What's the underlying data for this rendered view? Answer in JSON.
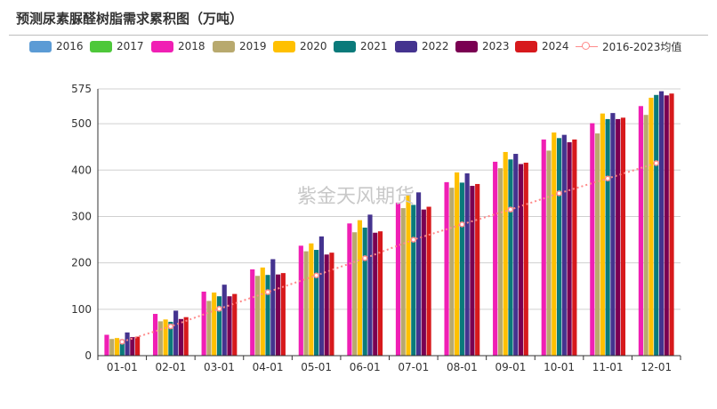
{
  "title": "预测尿素脲醛树脂需求累积图（万吨）",
  "watermark": "紫金天风期货",
  "legend": [
    {
      "label": "2016",
      "color": "#5b9bd5"
    },
    {
      "label": "2017",
      "color": "#4ec83a"
    },
    {
      "label": "2018",
      "color": "#f01fb4"
    },
    {
      "label": "2019",
      "color": "#b8a96e"
    },
    {
      "label": "2020",
      "color": "#ffc000"
    },
    {
      "label": "2021",
      "color": "#0a7a7a"
    },
    {
      "label": "2022",
      "color": "#44338f"
    },
    {
      "label": "2023",
      "color": "#7a0052"
    },
    {
      "label": "2024",
      "color": "#d7191c"
    },
    {
      "label": "2016-2023均值",
      "color": "#ff8a8a"
    }
  ],
  "chart_data": {
    "type": "bar",
    "categories": [
      "01-01",
      "02-01",
      "03-01",
      "04-01",
      "05-01",
      "06-01",
      "07-01",
      "08-01",
      "09-01",
      "10-01",
      "11-01",
      "12-01"
    ],
    "ylim": [
      0,
      575
    ],
    "yticks": [
      "0",
      "100",
      "200",
      "300",
      "400",
      "500",
      "575"
    ],
    "ytick_values": [
      0,
      100,
      200,
      300,
      400,
      500,
      575
    ],
    "grid": true,
    "series": [
      {
        "name": "2018",
        "color": "#f01fb4",
        "values": [
          45,
          90,
          138,
          186,
          237,
          285,
          330,
          374,
          418,
          466,
          501,
          538
        ]
      },
      {
        "name": "2019",
        "color": "#b8a96e",
        "values": [
          36,
          74,
          118,
          172,
          225,
          266,
          318,
          362,
          404,
          442,
          479,
          519
        ]
      },
      {
        "name": "2020",
        "color": "#ffc000",
        "values": [
          38,
          78,
          136,
          190,
          242,
          292,
          345,
          395,
          439,
          481,
          522,
          556
        ]
      },
      {
        "name": "2021",
        "color": "#0a7a7a",
        "values": [
          35,
          73,
          128,
          174,
          228,
          276,
          325,
          373,
          423,
          469,
          510,
          562
        ]
      },
      {
        "name": "2022",
        "color": "#44338f",
        "values": [
          50,
          97,
          153,
          208,
          257,
          304,
          352,
          393,
          435,
          476,
          523,
          570
        ]
      },
      {
        "name": "2023",
        "color": "#7a0052",
        "values": [
          40,
          79,
          128,
          175,
          218,
          265,
          315,
          366,
          413,
          460,
          510,
          561
        ]
      },
      {
        "name": "2024",
        "color": "#d7191c",
        "values": [
          41,
          83,
          133,
          178,
          222,
          268,
          321,
          370,
          416,
          466,
          513,
          565
        ]
      }
    ],
    "line_series": {
      "name": "2016-2023均值",
      "color": "#ff8a8a",
      "values": [
        30,
        63,
        101,
        137,
        173,
        210,
        250,
        283,
        315,
        350,
        382,
        415
      ]
    }
  }
}
